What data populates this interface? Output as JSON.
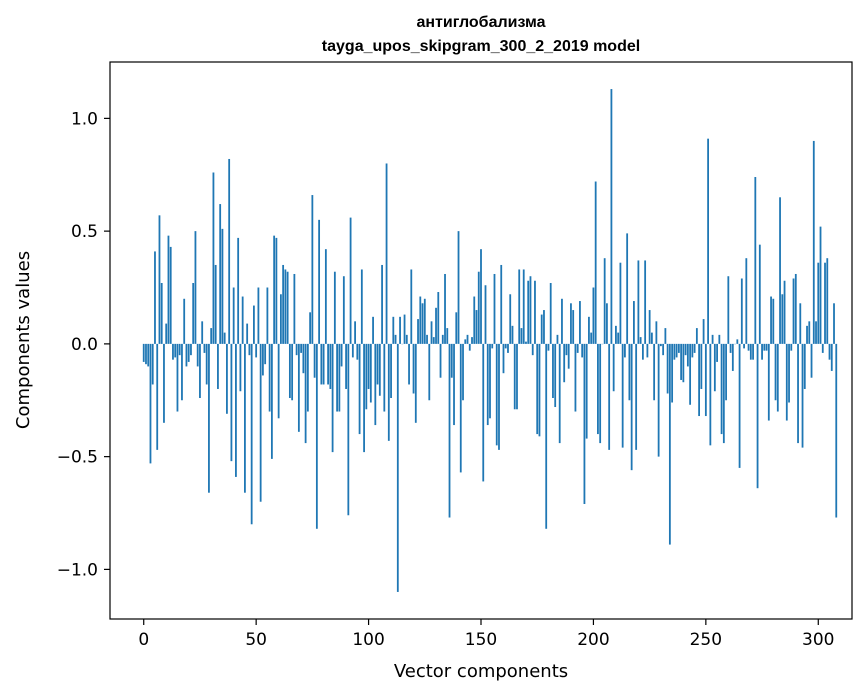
{
  "chart_data": {
    "type": "bar",
    "title": "антиглобализма",
    "subtitle": "tayga_upos_skipgram_300_2_2019 model",
    "xlabel": "Vector components",
    "ylabel": "Components values",
    "xlim": [
      -15,
      315
    ],
    "ylim": [
      -1.22,
      1.25
    ],
    "x_ticks": [
      0,
      50,
      100,
      150,
      200,
      250,
      300
    ],
    "y_ticks": [
      -1.0,
      -0.5,
      0.0,
      0.5,
      1.0
    ],
    "x_tick_labels": [
      "0",
      "50",
      "100",
      "150",
      "200",
      "250",
      "300"
    ],
    "y_tick_labels": [
      "−1.0",
      "−0.5",
      "0.0",
      "0.5",
      "1.0"
    ],
    "bar_color": "#1f77b4",
    "grid": false,
    "values": [
      -0.08,
      -0.09,
      -0.1,
      -0.53,
      -0.18,
      0.41,
      -0.47,
      0.57,
      0.27,
      -0.35,
      0.09,
      0.48,
      0.43,
      -0.07,
      -0.06,
      -0.3,
      -0.05,
      -0.25,
      0.2,
      -0.1,
      -0.08,
      -0.05,
      0.27,
      0.5,
      -0.1,
      -0.24,
      0.1,
      -0.04,
      -0.18,
      -0.66,
      0.07,
      0.76,
      0.35,
      -0.2,
      0.62,
      0.51,
      0.05,
      -0.31,
      0.82,
      -0.52,
      0.25,
      -0.59,
      0.47,
      -0.21,
      0.21,
      -0.66,
      0.09,
      -0.05,
      -0.8,
      0.17,
      -0.06,
      0.25,
      -0.7,
      -0.14,
      -0.09,
      0.25,
      -0.3,
      -0.51,
      0.48,
      0.47,
      -0.33,
      0.22,
      0.35,
      0.33,
      0.32,
      -0.24,
      -0.25,
      0.31,
      -0.05,
      -0.39,
      -0.04,
      -0.13,
      -0.44,
      -0.3,
      0.14,
      0.66,
      -0.15,
      -0.82,
      0.55,
      -0.18,
      -0.18,
      0.42,
      -0.18,
      -0.2,
      -0.48,
      0.32,
      -0.3,
      -0.3,
      -0.1,
      0.3,
      -0.2,
      -0.76,
      0.56,
      -0.06,
      0.1,
      -0.07,
      -0.4,
      0.33,
      -0.48,
      -0.29,
      -0.2,
      -0.26,
      0.12,
      -0.36,
      -0.18,
      -0.23,
      0.35,
      -0.3,
      0.8,
      -0.43,
      -0.24,
      0.12,
      0.04,
      -1.1,
      0.12,
      0.0,
      0.13,
      0.04,
      -0.18,
      0.33,
      -0.22,
      -0.35,
      0.11,
      0.21,
      0.18,
      0.2,
      0.04,
      -0.25,
      0.1,
      0.03,
      0.16,
      0.23,
      -0.15,
      0.04,
      0.31,
      0.07,
      -0.77,
      -0.15,
      -0.36,
      0.14,
      0.5,
      -0.57,
      -0.25,
      0.02,
      0.04,
      -0.03,
      0.03,
      0.21,
      0.15,
      0.32,
      0.42,
      -0.61,
      0.26,
      -0.36,
      -0.33,
      -0.02,
      0.31,
      -0.45,
      -0.47,
      0.35,
      -0.13,
      -0.02,
      -0.04,
      0.22,
      0.08,
      -0.29,
      -0.29,
      0.33,
      0.07,
      0.33,
      0.01,
      0.28,
      0.3,
      -0.05,
      0.28,
      -0.4,
      -0.41,
      0.13,
      0.15,
      -0.82,
      -0.03,
      0.27,
      -0.24,
      -0.28,
      0.04,
      -0.44,
      0.2,
      -0.17,
      -0.05,
      -0.11,
      0.18,
      0.15,
      -0.3,
      -0.04,
      0.19,
      -0.06,
      -0.71,
      -0.42,
      0.12,
      0.05,
      0.25,
      0.72,
      -0.4,
      -0.44,
      0.0,
      0.38,
      0.18,
      -0.47,
      1.13,
      -0.21,
      0.08,
      0.05,
      0.36,
      -0.46,
      -0.06,
      0.49,
      -0.25,
      -0.56,
      0.19,
      -0.47,
      0.37,
      0.03,
      -0.07,
      0.37,
      -0.06,
      0.15,
      0.05,
      -0.25,
      0.1,
      -0.5,
      -0.01,
      -0.05,
      0.07,
      -0.22,
      -0.89,
      -0.26,
      -0.07,
      -0.06,
      -0.04,
      -0.16,
      -0.17,
      -0.05,
      -0.1,
      -0.27,
      -0.06,
      -0.04,
      0.07,
      -0.32,
      -0.2,
      0.11,
      -0.32,
      0.91,
      -0.45,
      0.04,
      -0.21,
      -0.08,
      0.04,
      -0.4,
      -0.44,
      -0.25,
      0.3,
      -0.04,
      -0.12,
      0.0,
      0.02,
      -0.55,
      0.29,
      -0.02,
      0.38,
      -0.03,
      -0.07,
      -0.07,
      0.74,
      -0.64,
      0.44,
      -0.07,
      -0.03,
      -0.03,
      -0.34,
      0.21,
      0.2,
      -0.25,
      -0.3,
      0.65,
      0.22,
      0.28,
      -0.34,
      -0.26,
      -0.03,
      0.29,
      0.31,
      -0.44,
      0.18,
      -0.46,
      -0.2,
      0.08,
      0.1,
      -0.15,
      0.9,
      0.1,
      0.36,
      0.52,
      -0.04,
      0.36,
      0.38,
      -0.07,
      -0.12,
      0.18,
      -0.77
    ]
  }
}
